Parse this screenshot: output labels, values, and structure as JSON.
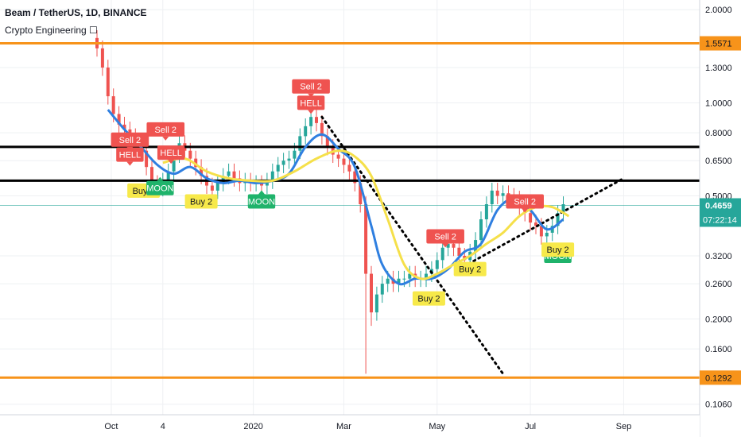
{
  "header": {
    "symbol": "Beam / TetherUS, 1D, BINANCE",
    "indicator": "Crypto Engineering ☐"
  },
  "colors": {
    "up": "#26a69a",
    "down": "#ef5350",
    "blue_line": "#2f7fe0",
    "yellow_line": "#f5e04a",
    "orange": "#f7931a",
    "black": "#000000",
    "last_price": "#26a69a"
  },
  "chart_data": {
    "type": "line",
    "scale": "log",
    "ylim": [
      0.098,
      2.15
    ],
    "x_ticks": [
      "Oct",
      "4",
      "2020",
      "Mar",
      "May",
      "Jul",
      "Sep"
    ],
    "y_ticks": [
      "2.0000",
      "1.3000",
      "1.0000",
      "0.8000",
      "0.6500",
      "0.5000",
      "0.3200",
      "0.2600",
      "0.2000",
      "0.1600",
      "0.1060"
    ],
    "y_tick_values": [
      2.0,
      1.3,
      1.0,
      0.8,
      0.65,
      0.5,
      0.32,
      0.26,
      0.2,
      0.16,
      0.106
    ],
    "horizontal_levels": [
      {
        "value": 1.5571,
        "color": "orange",
        "label": "1.5571"
      },
      {
        "value": 0.1292,
        "color": "orange",
        "label": "0.1292"
      },
      {
        "value": 0.72,
        "color": "black",
        "label": ""
      },
      {
        "value": 0.56,
        "color": "black",
        "label": ""
      }
    ],
    "last_price": {
      "value": 0.4659,
      "label": "0.4659",
      "countdown": "07:22:14"
    },
    "close_series": [
      1.5,
      1.3,
      1.05,
      0.92,
      0.85,
      0.82,
      0.78,
      0.74,
      0.7,
      0.62,
      0.55,
      0.53,
      0.56,
      0.6,
      0.68,
      0.74,
      0.7,
      0.66,
      0.62,
      0.58,
      0.54,
      0.52,
      0.55,
      0.58,
      0.6,
      0.57,
      0.55,
      0.56,
      0.55,
      0.55,
      0.54,
      0.56,
      0.6,
      0.63,
      0.65,
      0.66,
      0.7,
      0.78,
      0.84,
      0.9,
      0.86,
      0.78,
      0.72,
      0.68,
      0.66,
      0.63,
      0.6,
      0.55,
      0.47,
      0.28,
      0.21,
      0.24,
      0.26,
      0.27,
      0.26,
      0.27,
      0.27,
      0.28,
      0.27,
      0.27,
      0.28,
      0.29,
      0.31,
      0.34,
      0.35,
      0.34,
      0.32,
      0.31,
      0.33,
      0.36,
      0.42,
      0.47,
      0.52,
      0.5,
      0.51,
      0.5,
      0.49,
      0.46,
      0.44,
      0.41,
      0.4,
      0.37,
      0.38,
      0.4,
      0.44,
      0.47
    ],
    "series": [
      {
        "values": [
          [
            2.0,
            0.95
          ],
          [
            5.0,
            0.82
          ],
          [
            8.0,
            0.72
          ],
          [
            11.0,
            0.63
          ],
          [
            14.0,
            0.59
          ],
          [
            17.0,
            0.62
          ],
          [
            20.0,
            0.57
          ],
          [
            23.0,
            0.55
          ],
          [
            26.0,
            0.56
          ],
          [
            29.0,
            0.55
          ],
          [
            32.0,
            0.56
          ],
          [
            35.0,
            0.59
          ],
          [
            38.0,
            0.72
          ],
          [
            41.0,
            0.79
          ],
          [
            44.0,
            0.71
          ],
          [
            47.0,
            0.62
          ],
          [
            50.0,
            0.4
          ],
          [
            52.0,
            0.3
          ],
          [
            55.0,
            0.26
          ],
          [
            58.0,
            0.27
          ],
          [
            61.0,
            0.27
          ],
          [
            64.0,
            0.29
          ],
          [
            67.0,
            0.33
          ],
          [
            70.0,
            0.35
          ],
          [
            73.0,
            0.45
          ],
          [
            76.0,
            0.49
          ],
          [
            79.0,
            0.45
          ],
          [
            82.0,
            0.39
          ],
          [
            85.0,
            0.42
          ]
        ]
      },
      {
        "values": [
          [
            12.0,
            0.64
          ],
          [
            16.0,
            0.66
          ],
          [
            20.0,
            0.6
          ],
          [
            24.0,
            0.57
          ],
          [
            28.0,
            0.56
          ],
          [
            32.0,
            0.56
          ],
          [
            36.0,
            0.6
          ],
          [
            40.0,
            0.66
          ],
          [
            44.0,
            0.7
          ],
          [
            47.0,
            0.67
          ],
          [
            50.0,
            0.58
          ],
          [
            53.0,
            0.42
          ],
          [
            56.0,
            0.3
          ],
          [
            59.0,
            0.27
          ],
          [
            62.0,
            0.28
          ],
          [
            65.0,
            0.3
          ],
          [
            68.0,
            0.32
          ],
          [
            71.0,
            0.35
          ],
          [
            74.0,
            0.38
          ],
          [
            77.0,
            0.43
          ],
          [
            80.0,
            0.46
          ],
          [
            83.0,
            0.46
          ],
          [
            86.0,
            0.43
          ]
        ]
      }
    ],
    "trendlines": [
      {
        "from": [
          41.0,
          0.9
        ],
        "to": [
          74.0,
          0.133
        ]
      },
      {
        "from": [
          66.0,
          0.29
        ],
        "to": [
          96.0,
          0.57
        ]
      }
    ],
    "signals": [
      {
        "text": "Sell 2",
        "kind": "sell",
        "x": 6.0,
        "y": 0.76
      },
      {
        "text": "HELL",
        "kind": "sell",
        "x": 6.0,
        "y": 0.68
      },
      {
        "text": "Sell 2",
        "kind": "sell",
        "x": 12.5,
        "y": 0.82
      },
      {
        "text": "HELL",
        "kind": "sell",
        "x": 13.5,
        "y": 0.69
      },
      {
        "text": "Buy 2",
        "kind": "buy",
        "x": 8.5,
        "y": 0.52
      },
      {
        "text": "MOON",
        "kind": "moon",
        "x": 11.5,
        "y": 0.53
      },
      {
        "text": "Buy 2",
        "kind": "buy",
        "x": 19.0,
        "y": 0.48
      },
      {
        "text": "MOON",
        "kind": "moon",
        "x": 30.0,
        "y": 0.48
      },
      {
        "text": "Sell 2",
        "kind": "sell",
        "x": 39.0,
        "y": 1.13
      },
      {
        "text": "HELL",
        "kind": "sell",
        "x": 39.0,
        "y": 1.0
      },
      {
        "text": "Buy 2",
        "kind": "buy",
        "x": 60.5,
        "y": 0.233
      },
      {
        "text": "Sell 2",
        "kind": "sell",
        "x": 63.5,
        "y": 0.37
      },
      {
        "text": "Buy 2",
        "kind": "buy",
        "x": 68.0,
        "y": 0.29
      },
      {
        "text": "Sell 2",
        "kind": "sell",
        "x": 78.0,
        "y": 0.48
      },
      {
        "text": "MOON",
        "kind": "moon",
        "x": 84.0,
        "y": 0.32
      },
      {
        "text": "Buy 2",
        "kind": "buy",
        "x": 84.0,
        "y": 0.335
      }
    ]
  }
}
